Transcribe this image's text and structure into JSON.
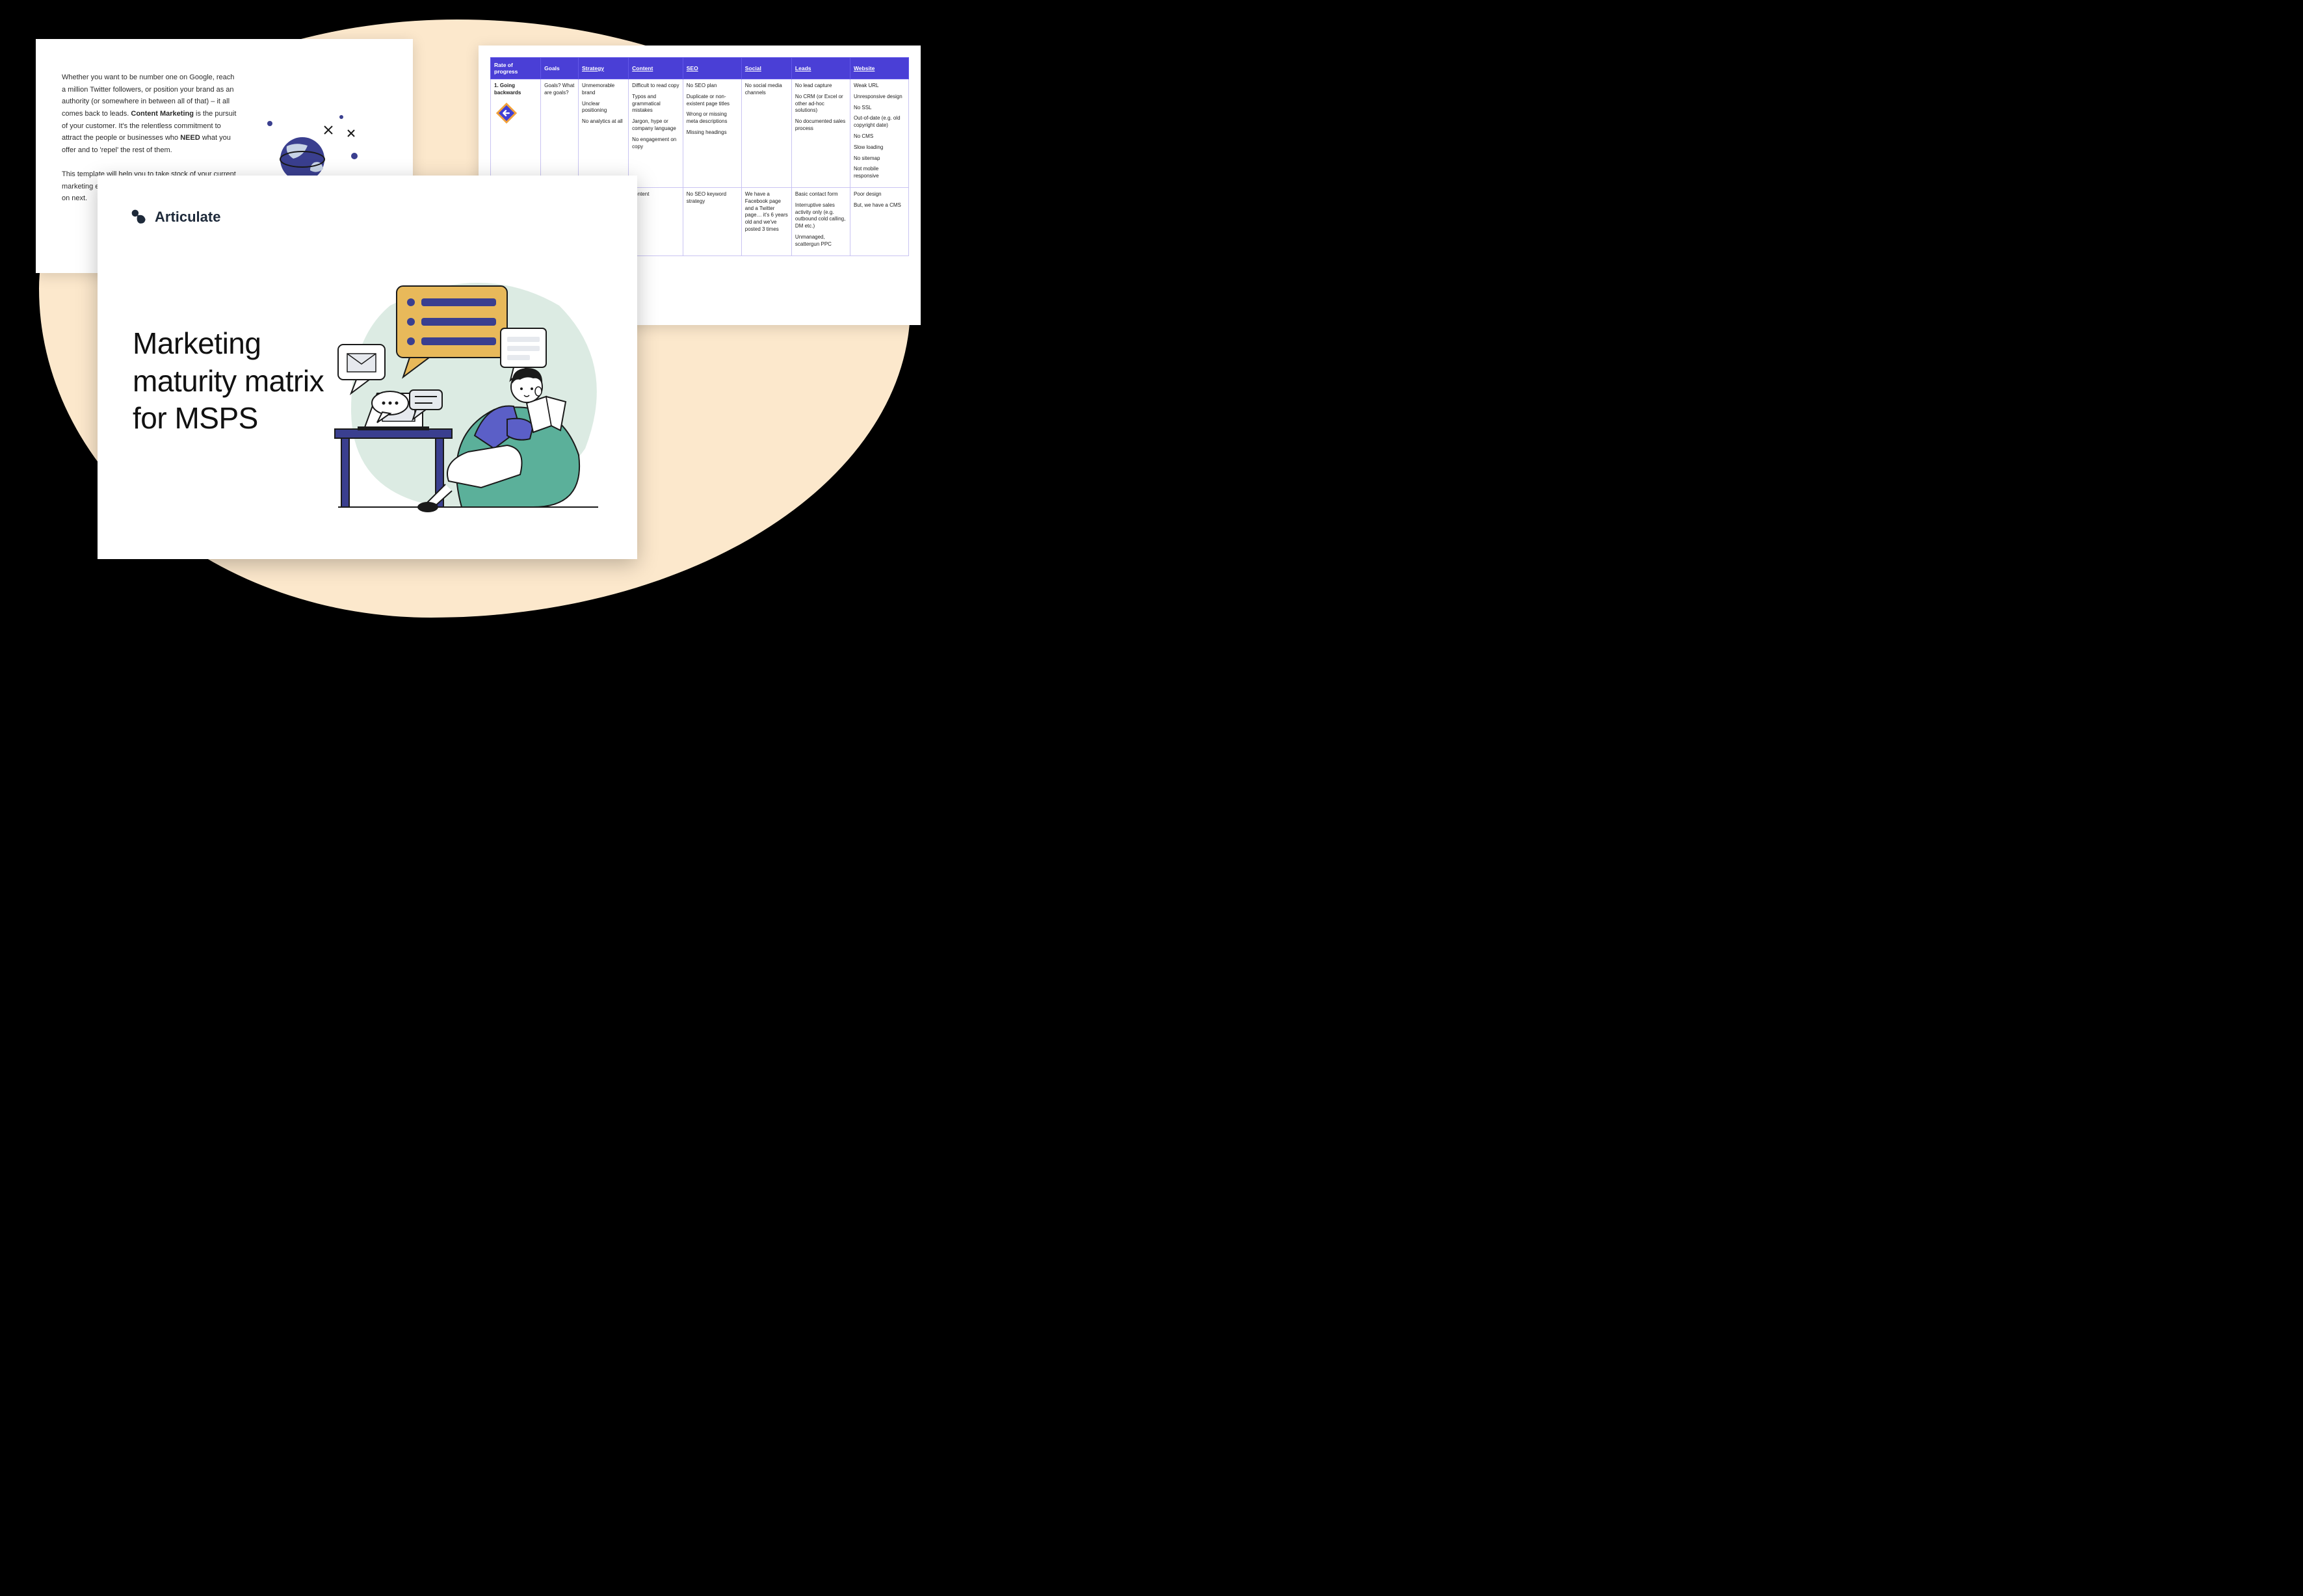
{
  "colors": {
    "page_bg": "#000000",
    "blob": "#fce8cc",
    "card_bg": "#ffffff",
    "text": "#2a2a2a",
    "brand_text": "#1e2a3a",
    "table_header_bg": "#4a3fd6",
    "table_header_border": "#6257e8",
    "table_border": "#c9c4f2",
    "illus_blue": "#5b5fc7",
    "illus_green": "#5bb09a",
    "illus_yellow": "#e8b95a",
    "illus_ink": "#1a1a1a",
    "illus_grey": "#e6e9ee",
    "arrow_orange": "#f2a13a",
    "arrow_blue": "#3f3fd6"
  },
  "back_text": {
    "p1_pre": "Whether you want to be number one on Google, reach a million Twitter followers, or position your brand as an authority (or somewhere in between all of that) – it all comes back to leads. ",
    "p1_bold": "Content Marketing",
    "p1_mid": " is the pursuit of your customer. It's the relentless commitment to attract the people or businesses who ",
    "p1_bold2": "NEED",
    "p1_post": " what you offer and to 'repel' the rest of them.",
    "p2": "This template will help you to take stock of your current marketing efforts and evaluate what you need to focus on next."
  },
  "table": {
    "headers": [
      "Rate of progress",
      "Goals",
      "Strategy",
      "Content",
      "SEO",
      "Social",
      "Leads",
      "Website"
    ],
    "header_underline": [
      false,
      false,
      true,
      true,
      true,
      true,
      true,
      true
    ],
    "col_widths": [
      "12%",
      "9%",
      "12%",
      "13%",
      "14%",
      "12%",
      "14%",
      "14%"
    ],
    "rows": [
      {
        "label": "1. Going backwards",
        "has_arrow": true,
        "cells": [
          [
            "Goals? What are goals?"
          ],
          [
            "Unmemorable brand",
            "Unclear positioning",
            "No analytics at all"
          ],
          [
            "Difficult to read copy",
            "Typos and grammatical mistakes",
            "Jargon, hype or company language",
            "No engagement on copy"
          ],
          [
            "No SEO plan",
            "Duplicate or non-existent page titles",
            "Wrong or missing meta descriptions",
            "Missing headings"
          ],
          [
            "No social media channels"
          ],
          [
            "No lead capture",
            "No CRM (or Excel or other ad-hoc solutions)",
            "No documented sales process"
          ],
          [
            "Weak URL",
            "Unresponsive design",
            "No SSL",
            "Out-of-date (e.g. old copyright date)",
            "No CMS",
            "Slow loading",
            "No sitemap",
            "Not mobile responsive"
          ]
        ]
      },
      {
        "label": "",
        "has_arrow": false,
        "cells": [
          [
            ""
          ],
          [
            ""
          ],
          [
            "content"
          ],
          [
            "No SEO keyword strategy"
          ],
          [
            "We have a Facebook page and a Twitter page… it's 6 years old and we've posted 3 times"
          ],
          [
            "Basic contact form",
            "Interruptive sales activity only (e.g. outbound cold calling, DM etc.)",
            "Unmanaged, scattergun PPC"
          ],
          [
            "Poor design",
            "But, we have a CMS"
          ]
        ]
      }
    ]
  },
  "cover": {
    "brand": "Articulate",
    "title": "Marketing maturity matrix for MSPS"
  }
}
